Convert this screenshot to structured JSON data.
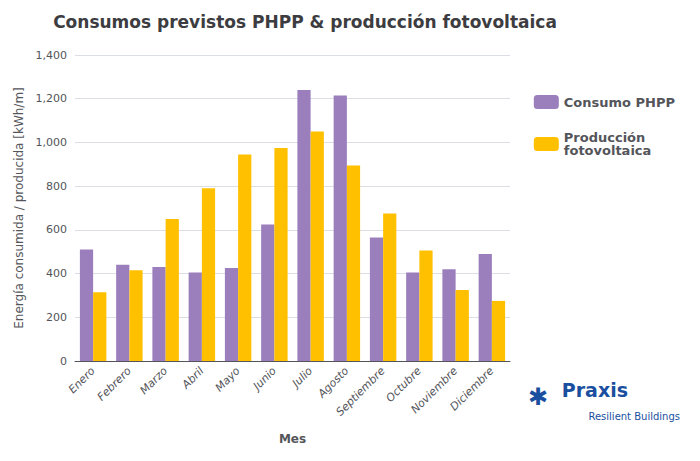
{
  "chart_data": {
    "type": "bar",
    "title": "Consumos previstos PHPP & producción fotovoltaica",
    "xlabel": "Mes",
    "ylabel": "Energía consumida / producida [kWh/m]",
    "categories": [
      "Enero",
      "Febrero",
      "Marzo",
      "Abril",
      "Mayo",
      "Junio",
      "Julio",
      "Agosto",
      "Septiembre",
      "Octubre",
      "Noviembre",
      "Diciembre"
    ],
    "series": [
      {
        "name": "Consumo PHPP",
        "color": "#9B7FBD",
        "values": [
          510,
          440,
          430,
          405,
          425,
          625,
          1240,
          1215,
          565,
          405,
          420,
          490
        ]
      },
      {
        "name": "Producción\nfotovoltaica",
        "color": "#FFC000",
        "values": [
          315,
          415,
          650,
          790,
          945,
          975,
          1050,
          895,
          675,
          505,
          325,
          275
        ]
      }
    ],
    "ylim": [
      0,
      1400
    ],
    "yticks": [
      0,
      200,
      400,
      600,
      800,
      1000,
      1200,
      1400
    ],
    "grid": true,
    "legend": "right",
    "annotations": [
      {
        "text": "✱",
        "color": "#1a4fa0"
      },
      {
        "text": "Praxis",
        "color": "#1a4fa0"
      },
      {
        "text": "Resilient Buildings",
        "color": "#1a4fa0"
      }
    ]
  }
}
